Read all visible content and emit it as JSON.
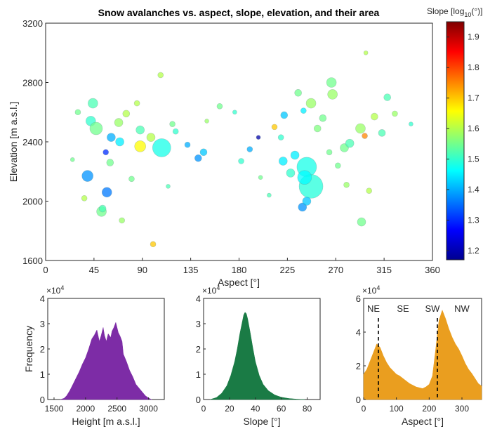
{
  "chart_data": [
    {
      "type": "scatter",
      "title": "Snow avalanches vs. aspect, slope, elevation, and their area",
      "xlabel": "Aspect [°]",
      "ylabel": "Elevation [m a.s.l.]",
      "xlim": [
        0,
        360
      ],
      "ylim": [
        1600,
        3200
      ],
      "xticks": [
        0,
        45,
        90,
        135,
        180,
        225,
        270,
        315,
        360
      ],
      "yticks": [
        1600,
        2000,
        2400,
        2800,
        3200
      ],
      "grid": false,
      "colorbar": {
        "label_prefix": "Slope [log",
        "label_sub": "10",
        "label_suffix": "(°)]",
        "range": [
          1.17,
          1.95
        ],
        "ticks": [
          1.2,
          1.3,
          1.4,
          1.5,
          1.6,
          1.7,
          1.8,
          1.9
        ],
        "colormap": "jet"
      },
      "marker_size_encodes": "avalanche area",
      "points": [
        {
          "x": 44,
          "y": 2660,
          "c": 1.52,
          "s": 7
        },
        {
          "x": 42,
          "y": 2540,
          "c": 1.5,
          "s": 7
        },
        {
          "x": 47,
          "y": 2490,
          "c": 1.55,
          "s": 9
        },
        {
          "x": 39,
          "y": 2170,
          "c": 1.38,
          "s": 8
        },
        {
          "x": 57,
          "y": 2060,
          "c": 1.36,
          "s": 7
        },
        {
          "x": 52,
          "y": 1930,
          "c": 1.55,
          "s": 7
        },
        {
          "x": 61,
          "y": 2430,
          "c": 1.4,
          "s": 6
        },
        {
          "x": 56,
          "y": 2330,
          "c": 1.3,
          "s": 4
        },
        {
          "x": 68,
          "y": 2530,
          "c": 1.58,
          "s": 6
        },
        {
          "x": 69,
          "y": 2400,
          "c": 1.45,
          "s": 6
        },
        {
          "x": 88,
          "y": 2480,
          "c": 1.52,
          "s": 6
        },
        {
          "x": 88,
          "y": 2370,
          "c": 1.66,
          "s": 8
        },
        {
          "x": 108,
          "y": 2360,
          "c": 1.48,
          "s": 13
        },
        {
          "x": 98,
          "y": 2430,
          "c": 1.6,
          "s": 6
        },
        {
          "x": 100,
          "y": 1710,
          "c": 1.7,
          "s": 4
        },
        {
          "x": 107,
          "y": 2850,
          "c": 1.6,
          "s": 4
        },
        {
          "x": 121,
          "y": 2470,
          "c": 1.5,
          "s": 4
        },
        {
          "x": 142,
          "y": 2290,
          "c": 1.38,
          "s": 5
        },
        {
          "x": 147,
          "y": 2330,
          "c": 1.42,
          "s": 5
        },
        {
          "x": 132,
          "y": 2380,
          "c": 1.4,
          "s": 4
        },
        {
          "x": 182,
          "y": 2270,
          "c": 1.5,
          "s": 4
        },
        {
          "x": 190,
          "y": 2350,
          "c": 1.4,
          "s": 4
        },
        {
          "x": 198,
          "y": 2430,
          "c": 1.2,
          "s": 3
        },
        {
          "x": 213,
          "y": 2500,
          "c": 1.7,
          "s": 4
        },
        {
          "x": 221,
          "y": 2270,
          "c": 1.45,
          "s": 6
        },
        {
          "x": 228,
          "y": 2190,
          "c": 1.5,
          "s": 6
        },
        {
          "x": 243,
          "y": 2230,
          "c": 1.48,
          "s": 14
        },
        {
          "x": 247,
          "y": 2100,
          "c": 1.49,
          "s": 17
        },
        {
          "x": 241,
          "y": 2160,
          "c": 1.46,
          "s": 10
        },
        {
          "x": 239,
          "y": 1960,
          "c": 1.38,
          "s": 6
        },
        {
          "x": 243,
          "y": 2000,
          "c": 1.42,
          "s": 6
        },
        {
          "x": 232,
          "y": 2310,
          "c": 1.45,
          "s": 6
        },
        {
          "x": 222,
          "y": 2580,
          "c": 1.42,
          "s": 5
        },
        {
          "x": 247,
          "y": 2660,
          "c": 1.58,
          "s": 7
        },
        {
          "x": 253,
          "y": 2490,
          "c": 1.56,
          "s": 5
        },
        {
          "x": 266,
          "y": 2800,
          "c": 1.55,
          "s": 7
        },
        {
          "x": 267,
          "y": 2720,
          "c": 1.58,
          "s": 7
        },
        {
          "x": 278,
          "y": 2360,
          "c": 1.55,
          "s": 6
        },
        {
          "x": 283,
          "y": 2390,
          "c": 1.52,
          "s": 6
        },
        {
          "x": 297,
          "y": 2440,
          "c": 1.75,
          "s": 4
        },
        {
          "x": 293,
          "y": 2490,
          "c": 1.58,
          "s": 7
        },
        {
          "x": 294,
          "y": 1860,
          "c": 1.55,
          "s": 6
        },
        {
          "x": 306,
          "y": 2570,
          "c": 1.6,
          "s": 5
        },
        {
          "x": 313,
          "y": 2460,
          "c": 1.52,
          "s": 5
        },
        {
          "x": 325,
          "y": 2590,
          "c": 1.58,
          "s": 4
        },
        {
          "x": 298,
          "y": 3000,
          "c": 1.6,
          "s": 3
        },
        {
          "x": 60,
          "y": 2260,
          "c": 1.55,
          "s": 5
        },
        {
          "x": 75,
          "y": 2590,
          "c": 1.6,
          "s": 5
        },
        {
          "x": 36,
          "y": 2020,
          "c": 1.6,
          "s": 4
        },
        {
          "x": 53,
          "y": 1950,
          "c": 1.52,
          "s": 5
        },
        {
          "x": 162,
          "y": 2640,
          "c": 1.55,
          "s": 4
        },
        {
          "x": 219,
          "y": 2430,
          "c": 1.5,
          "s": 4
        },
        {
          "x": 264,
          "y": 2330,
          "c": 1.55,
          "s": 4
        },
        {
          "x": 280,
          "y": 2110,
          "c": 1.58,
          "s": 4
        },
        {
          "x": 318,
          "y": 2700,
          "c": 1.52,
          "s": 5
        },
        {
          "x": 340,
          "y": 2520,
          "c": 1.5,
          "s": 3
        },
        {
          "x": 25,
          "y": 2280,
          "c": 1.55,
          "s": 3
        },
        {
          "x": 30,
          "y": 2600,
          "c": 1.55,
          "s": 4
        },
        {
          "x": 114,
          "y": 2100,
          "c": 1.52,
          "s": 3
        },
        {
          "x": 150,
          "y": 2540,
          "c": 1.58,
          "s": 3
        },
        {
          "x": 176,
          "y": 2600,
          "c": 1.5,
          "s": 3
        },
        {
          "x": 200,
          "y": 2160,
          "c": 1.55,
          "s": 3
        },
        {
          "x": 208,
          "y": 2040,
          "c": 1.52,
          "s": 3
        },
        {
          "x": 258,
          "y": 2560,
          "c": 1.55,
          "s": 5
        },
        {
          "x": 272,
          "y": 2240,
          "c": 1.55,
          "s": 4
        },
        {
          "x": 301,
          "y": 2070,
          "c": 1.6,
          "s": 4
        },
        {
          "x": 80,
          "y": 2150,
          "c": 1.55,
          "s": 4
        },
        {
          "x": 85,
          "y": 2660,
          "c": 1.6,
          "s": 4
        },
        {
          "x": 118,
          "y": 2520,
          "c": 1.55,
          "s": 4
        },
        {
          "x": 235,
          "y": 2730,
          "c": 1.55,
          "s": 5
        },
        {
          "x": 240,
          "y": 2610,
          "c": 1.45,
          "s": 4
        },
        {
          "x": 71,
          "y": 1870,
          "c": 1.58,
          "s": 4
        }
      ]
    },
    {
      "type": "area",
      "xlabel": "Height [m a.s.l.]",
      "ylabel": "Frequency",
      "xlim": [
        1400,
        3250
      ],
      "xticks": [
        1500,
        2000,
        2500,
        3000
      ],
      "ylim": [
        0,
        40000
      ],
      "yticks": [
        0,
        1,
        2,
        3,
        4
      ],
      "y_exponent": "×10",
      "y_exponent_power": "4",
      "color": "#7d2ca6",
      "x": [
        1600,
        1660,
        1700,
        1750,
        1800,
        1850,
        1900,
        1950,
        2000,
        2050,
        2100,
        2140,
        2180,
        2220,
        2250,
        2280,
        2300,
        2330,
        2360,
        2400,
        2420,
        2450,
        2480,
        2500,
        2520,
        2550,
        2580,
        2600,
        2650,
        2700,
        2750,
        2800,
        2850,
        2900,
        2950,
        3000,
        3050
      ],
      "y": [
        0,
        500,
        1500,
        3500,
        6000,
        8500,
        11000,
        14000,
        16500,
        20000,
        24000,
        25500,
        27500,
        23000,
        25500,
        28500,
        25500,
        23000,
        26000,
        24500,
        27000,
        28500,
        30500,
        28500,
        26500,
        25000,
        23000,
        18000,
        15000,
        11500,
        9000,
        6000,
        4500,
        3000,
        1500,
        600,
        0
      ]
    },
    {
      "type": "area",
      "xlabel": "Slope [°]",
      "xlim": [
        0,
        90
      ],
      "xticks": [
        0,
        20,
        40,
        60,
        80
      ],
      "ylim": [
        0,
        40000
      ],
      "yticks": [
        0,
        1,
        2,
        3,
        4
      ],
      "y_exponent": "×10",
      "y_exponent_power": "4",
      "color": "#1a7b45",
      "x": [
        5,
        10,
        14,
        18,
        21,
        24,
        26,
        28,
        30,
        31,
        32,
        33,
        34,
        36,
        38,
        40,
        43,
        46,
        50,
        55,
        60,
        66,
        72,
        78
      ],
      "y": [
        0,
        800,
        2500,
        5500,
        9500,
        15000,
        20000,
        26000,
        31000,
        33500,
        34500,
        34000,
        32000,
        26500,
        20500,
        15000,
        9500,
        6000,
        3500,
        1800,
        900,
        400,
        150,
        0
      ]
    },
    {
      "type": "area",
      "xlabel": "Aspect [°]",
      "xlim": [
        0,
        360
      ],
      "xticks": [
        0,
        100,
        200,
        300
      ],
      "ylim": [
        0,
        60000
      ],
      "yticks": [
        0,
        2,
        4,
        6
      ],
      "y_exponent": "×10",
      "y_exponent_power": "4",
      "color": "#ea9e1f",
      "annotations": [
        {
          "text": "NE",
          "x": 30
        },
        {
          "text": "SE",
          "x": 120
        },
        {
          "text": "SW",
          "x": 210
        },
        {
          "text": "NW",
          "x": 300
        }
      ],
      "vlines": [
        45,
        225
      ],
      "x": [
        0,
        10,
        20,
        30,
        40,
        50,
        60,
        70,
        80,
        90,
        100,
        110,
        120,
        130,
        140,
        150,
        160,
        170,
        180,
        190,
        200,
        210,
        220,
        230,
        240,
        250,
        260,
        270,
        280,
        290,
        300,
        310,
        320,
        330,
        340,
        350,
        360
      ],
      "y": [
        15000,
        18000,
        23000,
        28000,
        33000,
        31000,
        26000,
        22000,
        19000,
        17000,
        15000,
        14000,
        12500,
        11000,
        9500,
        8500,
        7500,
        7000,
        6500,
        7500,
        9000,
        14000,
        30000,
        47000,
        53000,
        48000,
        42000,
        37000,
        33000,
        30000,
        26000,
        21500,
        18000,
        15500,
        12500,
        9500,
        8000
      ]
    }
  ]
}
